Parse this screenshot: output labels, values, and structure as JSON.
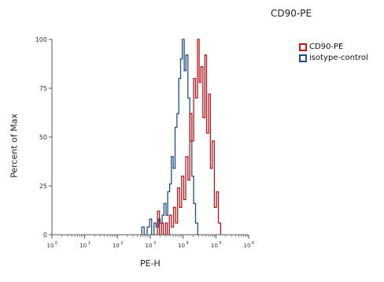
{
  "chart_data": {
    "type": "histogram",
    "title": "CD90-PE",
    "xlabel": "PE-H",
    "ylabel": "Percent of Max",
    "x_scale": "log",
    "xlim": [
      1,
      1000000
    ],
    "ylim": [
      0,
      100
    ],
    "x_ticks": [
      {
        "value": 1,
        "label": "10",
        "exp": "0"
      },
      {
        "value": 10,
        "label": "10",
        "exp": "1"
      },
      {
        "value": 100,
        "label": "10",
        "exp": "2"
      },
      {
        "value": 1000,
        "label": "10",
        "exp": "3"
      },
      {
        "value": 10000,
        "label": "10",
        "exp": "4"
      },
      {
        "value": 100000,
        "label": "10",
        "exp": "5"
      },
      {
        "value": 1000000,
        "label": "10",
        "exp": "6"
      }
    ],
    "y_ticks": [
      0,
      25,
      50,
      75,
      100
    ],
    "grid": false,
    "legend_position": "top-right",
    "series": [
      {
        "name": "CD90-PE",
        "color": "#c0161c",
        "x": [
          1400,
          1650,
          1900,
          2200,
          2500,
          2900,
          3300,
          3800,
          4400,
          5100,
          5900,
          6800,
          7800,
          9000,
          10500,
          12000,
          14000,
          16000,
          18500,
          21000,
          24000,
          27500,
          31000,
          35000,
          40000,
          46000,
          52000,
          60000,
          68000,
          78000,
          90000,
          105000,
          120000,
          140000
        ],
        "y": [
          0,
          12,
          0,
          6,
          0,
          6,
          0,
          10,
          4,
          14,
          6,
          24,
          14,
          30,
          18,
          40,
          28,
          62,
          48,
          80,
          70,
          100,
          78,
          86,
          60,
          92,
          52,
          72,
          34,
          48,
          14,
          22,
          6,
          0
        ]
      },
      {
        "name": "isotype-control",
        "color": "#1f4e8c",
        "x": [
          550,
          650,
          800,
          950,
          1100,
          1300,
          1500,
          1750,
          2000,
          2300,
          2600,
          3000,
          3400,
          3900,
          4400,
          5000,
          5700,
          6500,
          7400,
          8400,
          9500,
          10800,
          12200,
          14000,
          16000,
          18500,
          21000,
          24000,
          28000
        ],
        "y": [
          4,
          0,
          4,
          8,
          0,
          6,
          4,
          8,
          6,
          10,
          16,
          10,
          22,
          26,
          40,
          34,
          55,
          62,
          80,
          90,
          100,
          84,
          92,
          70,
          48,
          30,
          16,
          6,
          0
        ]
      }
    ]
  }
}
